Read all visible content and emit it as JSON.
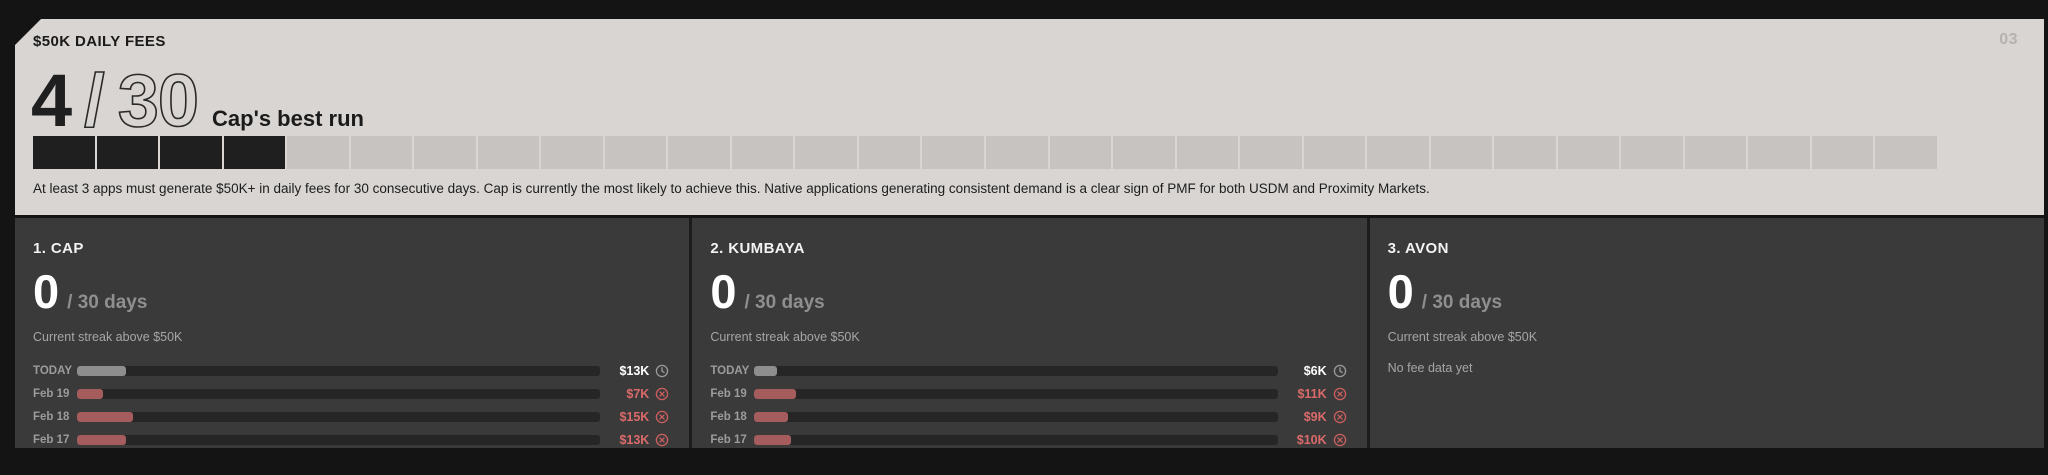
{
  "page": {
    "number": "03"
  },
  "header": {
    "title": "$50K DAILY FEES",
    "progress_current": "4",
    "progress_separator": "/",
    "progress_total": "30",
    "progress_caption": "Cap's best run",
    "segments_total": 30,
    "segments_filled": 4,
    "description": "At least 3 apps must generate $50K+ in daily fees for 30 consecutive days. Cap is currently the most likely to achieve this. Native applications generating consistent demand is a clear sign of PMF for both USDM and Proximity Markets."
  },
  "colors": {
    "pending_fill": "#8e8e8e",
    "failed_fill": "#a45c5c",
    "failed_text": "#db6a6a",
    "pending_icon": "#9b9b9b",
    "failed_icon": "#cd5f5f"
  },
  "apps": [
    {
      "rank": "1.",
      "name": "CAP",
      "streak_current": "0",
      "streak_label": "/ 30 days",
      "streak_caption": "Current streak above $50K",
      "rows": [
        {
          "label": "TODAY",
          "value": "$13K",
          "fill_pct": 9.3,
          "status": "pending",
          "icon": "clock-icon"
        },
        {
          "label": "Feb 19",
          "value": "$7K",
          "fill_pct": 5.0,
          "status": "failed",
          "icon": "x-circle-icon"
        },
        {
          "label": "Feb 18",
          "value": "$15K",
          "fill_pct": 10.7,
          "status": "failed",
          "icon": "x-circle-icon"
        },
        {
          "label": "Feb 17",
          "value": "$13K",
          "fill_pct": 9.3,
          "status": "failed",
          "icon": "x-circle-icon"
        }
      ]
    },
    {
      "rank": "2.",
      "name": "KUMBAYA",
      "streak_current": "0",
      "streak_label": "/ 30 days",
      "streak_caption": "Current streak above $50K",
      "rows": [
        {
          "label": "TODAY",
          "value": "$6K",
          "fill_pct": 4.3,
          "status": "pending",
          "icon": "clock-icon"
        },
        {
          "label": "Feb 19",
          "value": "$11K",
          "fill_pct": 7.9,
          "status": "failed",
          "icon": "x-circle-icon"
        },
        {
          "label": "Feb 18",
          "value": "$9K",
          "fill_pct": 6.4,
          "status": "failed",
          "icon": "x-circle-icon"
        },
        {
          "label": "Feb 17",
          "value": "$10K",
          "fill_pct": 7.1,
          "status": "failed",
          "icon": "x-circle-icon"
        }
      ]
    },
    {
      "rank": "3.",
      "name": "AVON",
      "streak_current": "0",
      "streak_label": "/ 30 days",
      "streak_caption": "Current streak above $50K",
      "empty_message": "No fee data yet",
      "rows": []
    }
  ]
}
